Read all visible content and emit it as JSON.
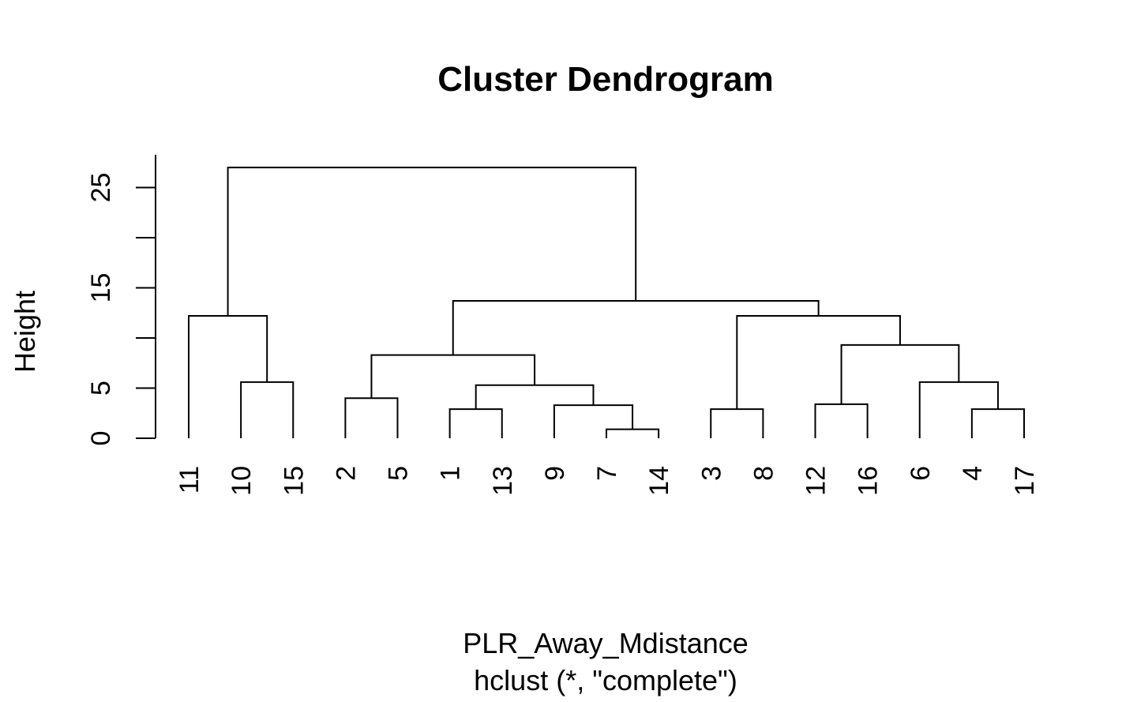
{
  "chart_data": {
    "type": "dendrogram",
    "title": "Cluster Dendrogram",
    "xlabel": "PLR_Away_Mdistance",
    "sub": "hclust (*, \"complete\")",
    "ylabel": "Height",
    "ylim": [
      0,
      27
    ],
    "y_ticks": [
      0,
      5,
      10,
      15,
      20,
      25
    ],
    "y_tick_labels": [
      "0",
      "5",
      "",
      "15",
      "",
      "25"
    ],
    "leaf_order": [
      "11",
      "10",
      "15",
      "2",
      "5",
      "1",
      "13",
      "9",
      "7",
      "14",
      "3",
      "8",
      "12",
      "16",
      "6",
      "4",
      "17"
    ],
    "merges": [
      {
        "id": "m1",
        "left": "7",
        "right": "14",
        "height": 0.9
      },
      {
        "id": "m2",
        "left": "1",
        "right": "13",
        "height": 2.9
      },
      {
        "id": "m3",
        "left": "4",
        "right": "17",
        "height": 2.9
      },
      {
        "id": "m4",
        "left": "3",
        "right": "8",
        "height": 2.9
      },
      {
        "id": "m5",
        "left": "9",
        "right": "m1",
        "height": 3.3
      },
      {
        "id": "m6",
        "left": "12",
        "right": "16",
        "height": 3.4
      },
      {
        "id": "m7",
        "left": "2",
        "right": "5",
        "height": 4.0
      },
      {
        "id": "m8",
        "left": "m2",
        "right": "m5",
        "height": 5.3
      },
      {
        "id": "m9",
        "left": "6",
        "right": "m3",
        "height": 5.6
      },
      {
        "id": "m10",
        "left": "10",
        "right": "15",
        "height": 5.6
      },
      {
        "id": "m11",
        "left": "m7",
        "right": "m8",
        "height": 8.3
      },
      {
        "id": "m12",
        "left": "m6",
        "right": "m9",
        "height": 9.3
      },
      {
        "id": "m13",
        "left": "m4",
        "right": "m12",
        "height": 12.2
      },
      {
        "id": "m14",
        "left": "11",
        "right": "m10",
        "height": 12.2
      },
      {
        "id": "m15",
        "left": "m11",
        "right": "m13",
        "height": 13.7
      },
      {
        "id": "m16",
        "left": "m14",
        "right": "m15",
        "height": 27.0
      }
    ],
    "grid": false,
    "legend": "none"
  }
}
